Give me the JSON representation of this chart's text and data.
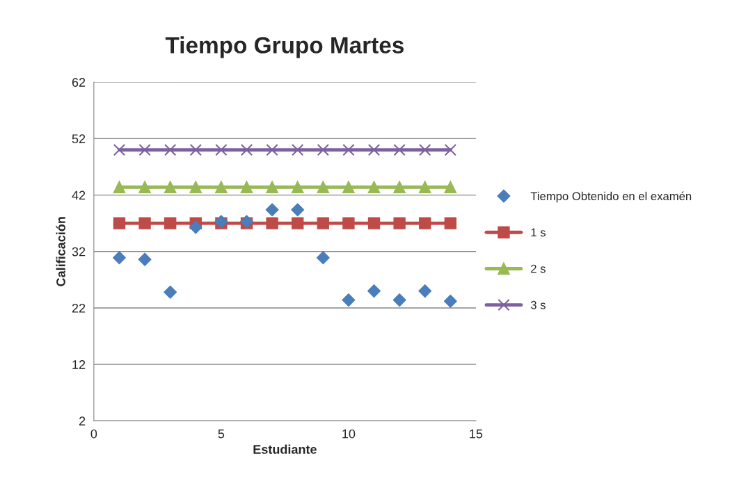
{
  "chart_data": {
    "type": "scatter",
    "title": "Tiempo Grupo Martes",
    "xlabel": "Estudiante",
    "ylabel": "Calificación",
    "x": [
      1,
      2,
      3,
      4,
      5,
      6,
      7,
      8,
      9,
      10,
      11,
      12,
      13,
      14
    ],
    "series": [
      {
        "name": "Tiempo Obtenido en el examén",
        "marker": "diamond",
        "color": "#4a7ebb",
        "values": [
          30.9,
          30.6,
          24.8,
          36.3,
          37.3,
          37.3,
          39.4,
          39.4,
          30.9,
          23.4,
          25.0,
          23.4,
          25.0,
          23.2
        ]
      },
      {
        "name": "1 s",
        "type": "line",
        "marker": "square",
        "color": "#be4b48",
        "values": [
          37,
          37,
          37,
          37,
          37,
          37,
          37,
          37,
          37,
          37,
          37,
          37,
          37,
          37
        ]
      },
      {
        "name": "2 s",
        "type": "line",
        "marker": "triangle",
        "color": "#98b954",
        "values": [
          43.4,
          43.4,
          43.4,
          43.4,
          43.4,
          43.4,
          43.4,
          43.4,
          43.4,
          43.4,
          43.4,
          43.4,
          43.4,
          43.4
        ]
      },
      {
        "name": "3 s",
        "type": "line",
        "marker": "cross",
        "color": "#7d60a0",
        "values": [
          50,
          50,
          50,
          50,
          50,
          50,
          50,
          50,
          50,
          50,
          50,
          50,
          50,
          50
        ]
      }
    ],
    "xlim": [
      0,
      15
    ],
    "xticks": [
      0,
      5,
      10,
      15
    ],
    "ylim": [
      2,
      62
    ],
    "yticks": [
      2,
      12,
      22,
      32,
      42,
      52,
      62
    ],
    "grid": "y",
    "legend": "right"
  }
}
